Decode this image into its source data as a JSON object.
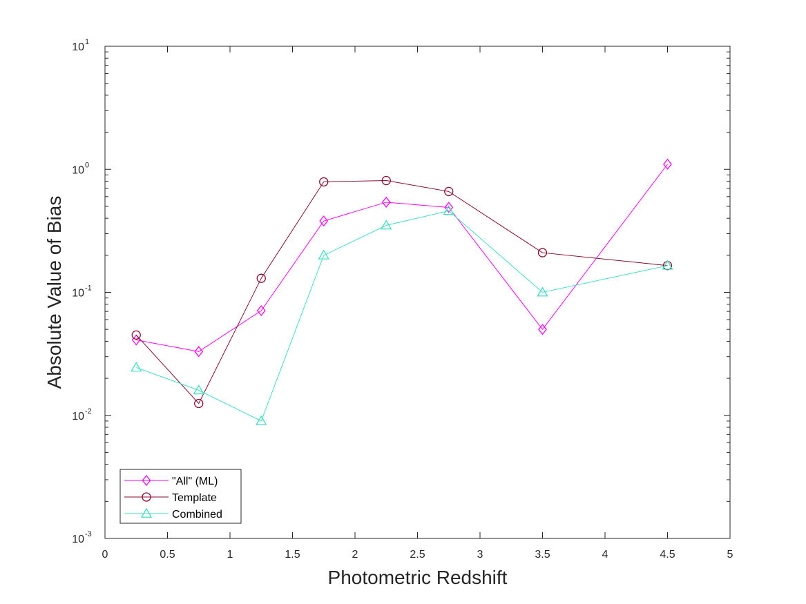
{
  "chart_data": {
    "type": "line",
    "title": "",
    "xlabel": "Photometric Redshift",
    "ylabel": "Absolute Value of Bias",
    "xlim": [
      0,
      5
    ],
    "ylim": [
      0.001,
      10
    ],
    "yscale": "log",
    "xticks": [
      0,
      0.5,
      1,
      1.5,
      2,
      2.5,
      3,
      3.5,
      4,
      4.5,
      5
    ],
    "xtick_labels": [
      "0",
      "0.5",
      "1",
      "1.5",
      "2",
      "2.5",
      "3",
      "3.5",
      "4",
      "4.5",
      "5"
    ],
    "yticks": [
      {
        "value": 0.001,
        "base": "10",
        "exp": "-3"
      },
      {
        "value": 0.01,
        "base": "10",
        "exp": "-2"
      },
      {
        "value": 0.1,
        "base": "10",
        "exp": "-1"
      },
      {
        "value": 1,
        "base": "10",
        "exp": "0"
      },
      {
        "value": 10,
        "base": "10",
        "exp": "1"
      }
    ],
    "grid": false,
    "legend_position": "bottom-left",
    "x": [
      0.25,
      0.75,
      1.25,
      1.75,
      2.25,
      2.75,
      3.5,
      4.5
    ],
    "series": [
      {
        "name": "\"All\" (ML)",
        "color": "#ff00ff",
        "marker": "diamond",
        "values": [
          0.041,
          0.033,
          0.071,
          0.38,
          0.54,
          0.49,
          0.05,
          1.1
        ]
      },
      {
        "name": "Template",
        "color": "#8b0a2a",
        "marker": "circle",
        "values": [
          0.045,
          0.0125,
          0.13,
          0.79,
          0.81,
          0.66,
          0.21,
          0.165
        ]
      },
      {
        "name": "Combined",
        "color": "#40e0c0",
        "marker": "triangle",
        "values": [
          0.0245,
          0.016,
          0.009,
          0.2,
          0.35,
          0.46,
          0.1,
          0.165
        ]
      }
    ]
  }
}
